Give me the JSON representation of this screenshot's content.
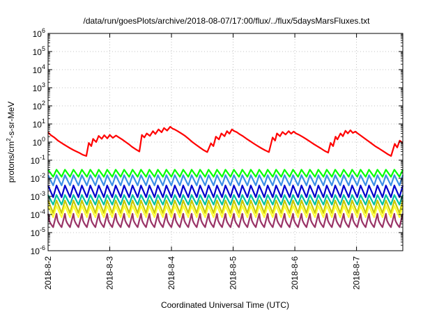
{
  "chart_data": {
    "type": "line",
    "title": "/data/run/goesPlots/archive/2018-08-07/17:00/flux/../flux/5daysMarsFluxes.txt",
    "xlabel": "Coordinated Universal Time (UTC)",
    "ylabel_parts": [
      "protons/cm",
      "2",
      "-s-sr-MeV"
    ],
    "yscale": "log",
    "ylim_exponents": [
      -6,
      6
    ],
    "y_tick_exponents": [
      -6,
      -5,
      -4,
      -3,
      -2,
      -1,
      0,
      1,
      2,
      3,
      4,
      5,
      6
    ],
    "y_tick_base": "10",
    "x_range_days": [
      0,
      5.75
    ],
    "x_tick_labels": [
      "2018-8-2",
      "2018-8-3",
      "2018-8-4",
      "2018-8-5",
      "2018-8-6",
      "2018-8-7"
    ],
    "grid": true,
    "series": [
      {
        "color": "#ff0000",
        "shape": "sawtooth",
        "x_days": [
          0.0,
          0.04,
          0.1,
          0.16,
          0.24,
          0.3,
          0.36,
          0.42,
          0.5,
          0.56,
          0.62,
          0.66,
          0.7,
          0.73,
          0.78,
          0.82,
          0.87,
          0.91,
          0.96,
          1.0,
          1.05,
          1.1,
          1.15,
          1.2,
          1.26,
          1.31,
          1.36,
          1.42,
          1.48,
          1.52,
          1.56,
          1.6,
          1.65,
          1.7,
          1.74,
          1.79,
          1.84,
          1.88,
          1.93,
          1.98,
          2.02,
          2.05,
          2.1,
          2.16,
          2.22,
          2.28,
          2.34,
          2.4,
          2.46,
          2.52,
          2.58,
          2.64,
          2.68,
          2.72,
          2.77,
          2.81,
          2.86,
          2.9,
          2.94,
          2.98,
          3.02,
          3.06,
          3.1,
          3.16,
          3.22,
          3.28,
          3.34,
          3.4,
          3.46,
          3.52,
          3.58,
          3.64,
          3.68,
          3.71,
          3.76,
          3.8,
          3.85,
          3.9,
          3.94,
          3.98,
          4.02,
          4.06,
          4.12,
          4.18,
          4.24,
          4.3,
          4.36,
          4.42,
          4.48,
          4.54,
          4.58,
          4.62,
          4.66,
          4.69,
          4.74,
          4.78,
          4.82,
          4.86,
          4.9,
          4.94,
          4.98,
          5.02,
          5.06,
          5.12,
          5.18,
          5.24,
          5.3,
          5.36,
          5.44,
          5.5,
          5.56,
          5.62,
          5.66,
          5.7,
          5.75
        ],
        "values": [
          3.5,
          2.5,
          1.8,
          1.2,
          0.8,
          0.6,
          0.45,
          0.35,
          0.26,
          0.2,
          0.17,
          0.9,
          0.6,
          1.5,
          1.0,
          2.2,
          1.5,
          2.4,
          1.6,
          2.5,
          1.7,
          2.3,
          1.8,
          1.4,
          1.0,
          0.75,
          0.55,
          0.4,
          0.3,
          2.5,
          1.8,
          3.0,
          2.2,
          4.0,
          2.8,
          5.0,
          3.5,
          6.0,
          4.3,
          7.0,
          5.5,
          5.0,
          4.0,
          3.0,
          2.2,
          1.5,
          1.0,
          0.7,
          0.5,
          0.36,
          0.28,
          0.85,
          0.6,
          2.0,
          1.4,
          3.0,
          2.1,
          4.0,
          2.9,
          5.0,
          4.0,
          3.5,
          2.8,
          2.1,
          1.5,
          1.1,
          0.8,
          0.6,
          0.45,
          0.35,
          0.28,
          1.8,
          1.2,
          3.0,
          2.1,
          3.6,
          2.6,
          4.0,
          2.9,
          3.8,
          3.0,
          2.6,
          2.0,
          1.5,
          1.1,
          0.8,
          0.6,
          0.45,
          0.33,
          0.26,
          0.9,
          0.6,
          2.0,
          1.4,
          3.0,
          2.1,
          4.2,
          3.0,
          4.5,
          3.2,
          3.8,
          3.0,
          2.4,
          1.7,
          1.2,
          0.85,
          0.6,
          0.45,
          0.3,
          0.22,
          0.17,
          0.8,
          0.5,
          1.2,
          0.9
        ]
      },
      {
        "color": "#00ff00",
        "shape": "zigzag",
        "cycles": 42,
        "high": 0.03,
        "low": 0.012
      },
      {
        "color": "#3b8ee6",
        "shape": "zigzag",
        "cycles": 42,
        "high": 0.015,
        "low": 0.004
      },
      {
        "color": "#0000cc",
        "shape": "zigzag",
        "cycles": 42,
        "high": 0.004,
        "low": 0.0009
      },
      {
        "color": "#00c0a0",
        "shape": "zigzag",
        "cycles": 42,
        "high": 0.0012,
        "low": 0.00035
      },
      {
        "color": "#c8c800",
        "shape": "zigzag",
        "cycles": 42,
        "high": 0.0006,
        "low": 0.00012
      },
      {
        "color": "#ffff33",
        "shape": "zigzag",
        "cycles": 42,
        "high": 0.0003,
        "low": 7e-05
      },
      {
        "color": "#993366",
        "shape": "cusp",
        "cycles": 42,
        "high": 0.00011,
        "low": 2e-05
      }
    ]
  }
}
